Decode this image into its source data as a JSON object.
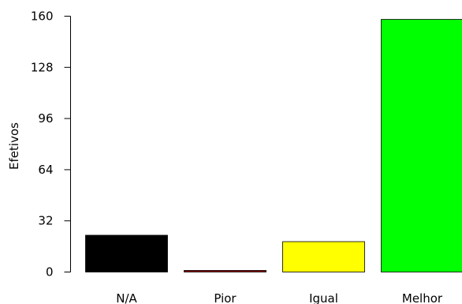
{
  "chart_data": {
    "type": "bar",
    "title": "",
    "xlabel": "",
    "ylabel": "Efetivos",
    "categories": [
      "N/A",
      "Pior",
      "Igual",
      "Melhor"
    ],
    "values": [
      23,
      1,
      19,
      158
    ],
    "colors": [
      "#000000",
      "#8b0000",
      "#ffff00",
      "#00ff00"
    ],
    "ylim": [
      0,
      160
    ],
    "yticks": [
      0,
      32,
      64,
      96,
      128,
      160
    ],
    "ytick_labels": [
      "0",
      "32",
      "64",
      "96",
      "128",
      "160"
    ],
    "grid": false,
    "legend": "none"
  }
}
